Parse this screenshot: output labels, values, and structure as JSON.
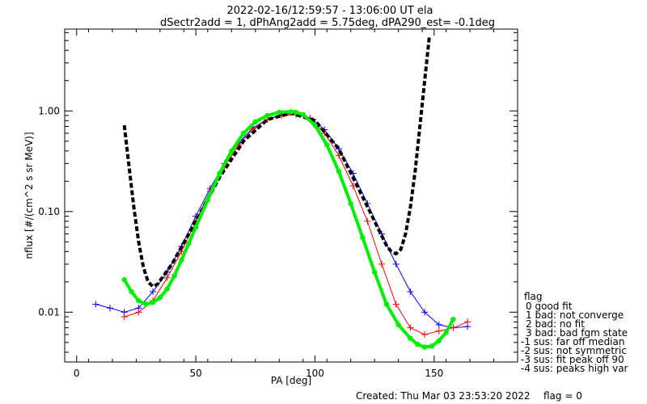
{
  "chart_data": {
    "type": "scatter",
    "title": "2022-02-16/12:59:57 - 13:06:00 UT ela",
    "subtitle": "dSectr2add = 1, dPhAng2add = 5.75deg, dPA290_est=  -0.1deg",
    "xlabel": "PA [deg]",
    "ylabel": "nflux [#/(cm^2 s sr MeV)]",
    "xlim": [
      -5,
      185
    ],
    "ylim": [
      0.0032,
      6.5
    ],
    "y_scale": "log",
    "grid": false,
    "x_ticks": [
      {
        "value": 0,
        "label": "0"
      },
      {
        "value": 50,
        "label": "50"
      },
      {
        "value": 100,
        "label": "100"
      },
      {
        "value": 150,
        "label": "150"
      }
    ],
    "y_ticks": [
      {
        "value": 0.01,
        "label": "0.01"
      },
      {
        "value": 0.1,
        "label": "0.10"
      },
      {
        "value": 1.0,
        "label": "1.00"
      }
    ],
    "series": [
      {
        "color": "#0000ff",
        "style": "line-plus",
        "x": [
          8,
          14,
          20,
          26,
          32,
          38,
          44,
          50,
          56,
          62,
          68,
          74,
          80,
          86,
          92,
          98,
          104,
          110,
          116,
          122,
          128,
          134,
          140,
          146,
          152,
          158,
          164
        ],
        "y": [
          0.012,
          0.011,
          0.01,
          0.011,
          0.016,
          0.025,
          0.045,
          0.09,
          0.17,
          0.3,
          0.48,
          0.68,
          0.82,
          0.92,
          0.95,
          0.85,
          0.65,
          0.42,
          0.24,
          0.12,
          0.06,
          0.03,
          0.016,
          0.01,
          0.0075,
          0.007,
          0.0072
        ]
      },
      {
        "color": "#ff0000",
        "style": "line-plus",
        "x": [
          20,
          26,
          32,
          38,
          44,
          50,
          56,
          62,
          68,
          74,
          80,
          86,
          92,
          98,
          104,
          110,
          116,
          122,
          128,
          134,
          140,
          146,
          152,
          158,
          164
        ],
        "y": [
          0.009,
          0.01,
          0.013,
          0.022,
          0.04,
          0.08,
          0.16,
          0.28,
          0.46,
          0.66,
          0.82,
          0.9,
          0.92,
          0.83,
          0.6,
          0.36,
          0.18,
          0.08,
          0.03,
          0.012,
          0.007,
          0.006,
          0.0065,
          0.007,
          0.008
        ]
      },
      {
        "color": "#000000",
        "style": "thick-dashed",
        "x": [
          20,
          22,
          24,
          26,
          28,
          30,
          32,
          34,
          40,
          50,
          60,
          70,
          80,
          90,
          100,
          110,
          120,
          130,
          132,
          134,
          136,
          138,
          140,
          142,
          144,
          146,
          148
        ],
        "y": [
          0.72,
          0.28,
          0.11,
          0.05,
          0.028,
          0.02,
          0.018,
          0.019,
          0.03,
          0.08,
          0.22,
          0.5,
          0.82,
          0.95,
          0.8,
          0.42,
          0.14,
          0.046,
          0.04,
          0.038,
          0.042,
          0.06,
          0.11,
          0.25,
          0.7,
          2.0,
          5.5
        ]
      },
      {
        "color": "#00ee00",
        "style": "thick-dots",
        "x": [
          20,
          23,
          26,
          29,
          32,
          35,
          38,
          41,
          44,
          47,
          50,
          55,
          60,
          65,
          70,
          75,
          80,
          85,
          90,
          92,
          95,
          100,
          105,
          110,
          115,
          120,
          125,
          130,
          135,
          140,
          143,
          146,
          149,
          152,
          155,
          158
        ],
        "y": [
          0.021,
          0.016,
          0.013,
          0.012,
          0.0125,
          0.014,
          0.017,
          0.023,
          0.033,
          0.048,
          0.07,
          0.13,
          0.24,
          0.4,
          0.6,
          0.78,
          0.9,
          0.97,
          0.98,
          0.97,
          0.92,
          0.72,
          0.46,
          0.25,
          0.12,
          0.055,
          0.025,
          0.012,
          0.0075,
          0.0055,
          0.0048,
          0.0045,
          0.0046,
          0.0052,
          0.0063,
          0.0085
        ]
      }
    ],
    "legend": {
      "placement": "right",
      "title": "flag",
      "entries": [
        "0 good fit",
        "1 bad: not converge",
        "2 bad: no fit",
        "3 bad: bad fgm state",
        "-1 sus: far off median",
        "-2 sus: not symmetric",
        "-3 sus: fit peak off 90",
        "-4 sus: peaks high var"
      ]
    }
  },
  "footer": {
    "created": "Created: Thu Mar 03 23:53:20 2022",
    "flag": "flag = 0"
  }
}
